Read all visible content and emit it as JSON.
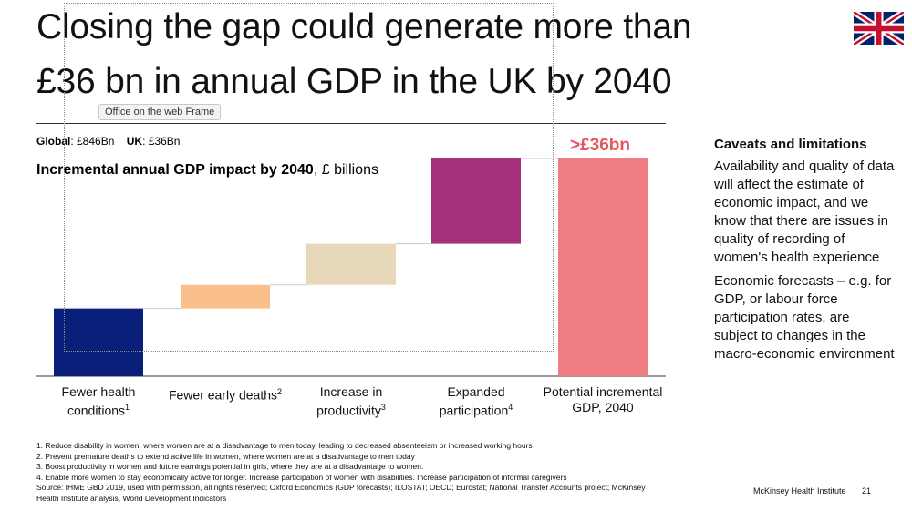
{
  "slide": {
    "title_line1": "Closing the gap could generate more than",
    "title_line2": "£36 bn in annual GDP  in the UK by 2040",
    "frame_tooltip": "Office on the web Frame",
    "global_label": "Global",
    "global_value": ": £846Bn",
    "uk_label": "UK",
    "uk_value": ": £36Bn",
    "chart_heading_bold": "Incremental annual GDP impact by 2040",
    "chart_heading_rest": ", £ billions",
    "caveats_title": "Caveats and limitations",
    "caveats_p1": "Availability and quality of data will affect the estimate of economic impact, and we know that there are issues in quality of recording of women's health experience",
    "caveats_p2": "Economic forecasts – e.g. for GDP, or labour force participation rates, are subject to changes in the macro-economic environment",
    "footnote1": "1. Reduce disability in women, where women are at a disadvantage to men today, leading to decreased absenteeism or increased working hours",
    "footnote2": "2. Prevent premature deaths to extend active life in women, where women are at a disadvantage to men today",
    "footnote3": "3. Boost productivity in women and future earnings potential in girls, where they are at a disadvantage to women.",
    "footnote4": "4. Enable more women to stay economically active for longer. Increase participation of women with disabilities. Increase participation of informal  caregivers",
    "source": "Source: IHME GBD 2019, used with permission, all rights reserved; Oxford Economics (GDP forecasts); ILOSTAT; OECD; Eurostat; National Transfer Accounts project; McKinsey Health Institute analysis, World Development Indicators",
    "brand": "McKinsey Health Institute",
    "page_number": "21",
    "flag_icon": "uk-flag-icon"
  },
  "chart_data": {
    "type": "waterfall",
    "title": "Incremental annual GDP impact by 2040, £ billions",
    "ylabel": "£ billions",
    "total_label": ">£36bn",
    "total_value": 36,
    "ylim": [
      0,
      36
    ],
    "categories": [
      {
        "line1": "Fewer health",
        "line2": "conditions",
        "sup": "1"
      },
      {
        "line1": "Fewer early deaths",
        "line2": "",
        "sup": "2"
      },
      {
        "line1": "Increase in",
        "line2": "productivity",
        "sup": "3"
      },
      {
        "line1": "Expanded",
        "line2": "participation",
        "sup": "4"
      },
      {
        "line1": "Potential incremental",
        "line2": "GDP, 2040",
        "sup": ""
      }
    ],
    "series": [
      {
        "name": "Fewer health conditions",
        "start": 0,
        "value": 11.2,
        "color": "#0a1f7a"
      },
      {
        "name": "Fewer early deaths",
        "start": 11.2,
        "value": 3.9,
        "color": "#fbbf8e"
      },
      {
        "name": "Increase in productivity",
        "start": 15.1,
        "value": 6.8,
        "color": "#e7d8b9"
      },
      {
        "name": "Expanded participation",
        "start": 21.9,
        "value": 14.1,
        "color": "#a5317d"
      },
      {
        "name": "Potential incremental GDP, 2040",
        "start": 0,
        "value": 36,
        "color": "#f07c84",
        "total": true
      }
    ],
    "total_label_color": "#e8545d",
    "grid": false
  }
}
